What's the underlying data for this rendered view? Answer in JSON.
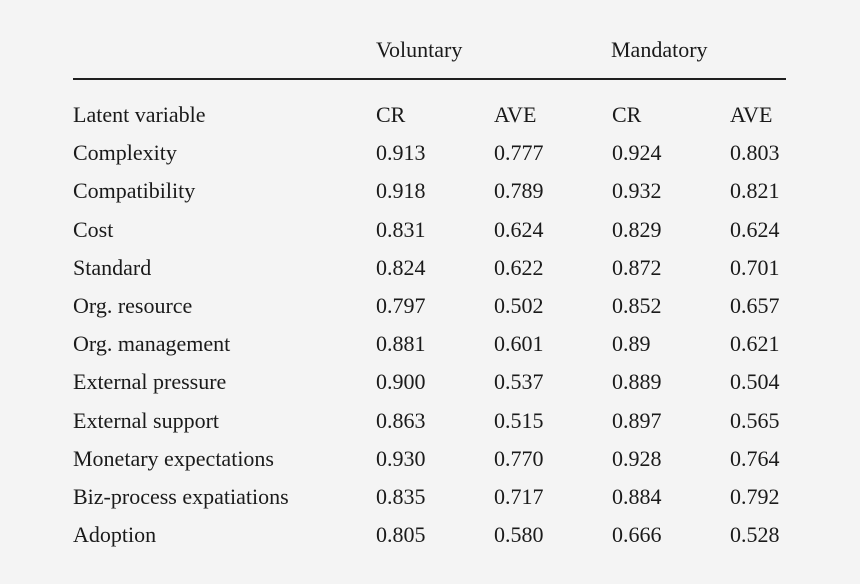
{
  "table": {
    "group_headers": [
      "Voluntary",
      "Mandatory"
    ],
    "columns": [
      "Latent variable",
      "CR",
      "AVE",
      "CR",
      "AVE"
    ],
    "rows": [
      [
        "Complexity",
        "0.913",
        "0.777",
        "0.924",
        "0.803"
      ],
      [
        "Compatibility",
        "0.918",
        "0.789",
        "0.932",
        "0.821"
      ],
      [
        "Cost",
        "0.831",
        "0.624",
        "0.829",
        "0.624"
      ],
      [
        "Standard",
        "0.824",
        "0.622",
        "0.872",
        "0.701"
      ],
      [
        "Org. resource",
        "0.797",
        "0.502",
        "0.852",
        "0.657"
      ],
      [
        "Org. management",
        "0.881",
        "0.601",
        "0.89",
        "0.621"
      ],
      [
        "External pressure",
        "0.900",
        "0.537",
        "0.889",
        "0.504"
      ],
      [
        "External support",
        "0.863",
        "0.515",
        "0.897",
        "0.565"
      ],
      [
        "Monetary expectations",
        "0.930",
        "0.770",
        "0.928",
        "0.764"
      ],
      [
        "Biz-process expatiations",
        "0.835",
        "0.717",
        "0.884",
        "0.792"
      ],
      [
        "Adoption",
        "0.805",
        "0.580",
        "0.666",
        "0.528"
      ]
    ]
  }
}
